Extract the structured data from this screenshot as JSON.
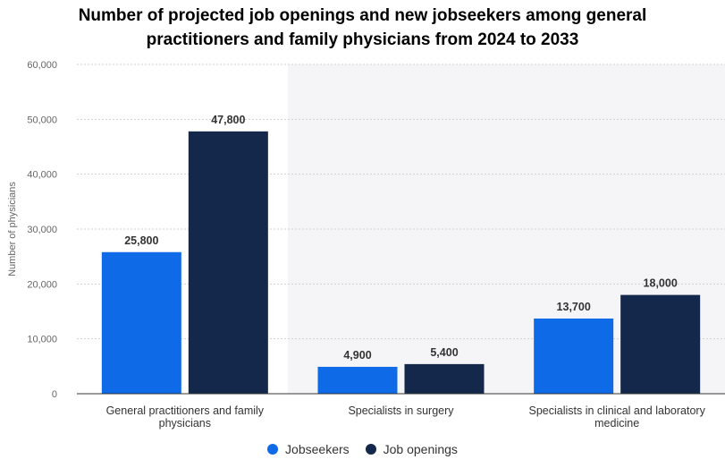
{
  "chart_data": {
    "type": "bar",
    "title_lines": [
      "Number of projected job openings and new jobseekers among general",
      "practitioners and family physicians from 2024 to 2033"
    ],
    "ylabel": "Number of physicians",
    "xlabel": "",
    "ylim": [
      0,
      60000
    ],
    "yticks": [
      0,
      10000,
      20000,
      30000,
      40000,
      50000,
      60000
    ],
    "ytick_labels": [
      "0",
      "10,000",
      "20,000",
      "30,000",
      "40,000",
      "50,000",
      "60,000"
    ],
    "grid": true,
    "legend_position": "bottom",
    "categories": [
      [
        "General practitioners and family",
        "physicians"
      ],
      [
        "Specialists in surgery"
      ],
      [
        "Specialists in clinical and laboratory",
        "medicine"
      ]
    ],
    "series": [
      {
        "name": "Jobseekers",
        "color": "#0e6ae6",
        "values": [
          25800,
          4900,
          13700
        ],
        "labels": [
          "25,800",
          "4,900",
          "13,700"
        ]
      },
      {
        "name": "Job openings",
        "color": "#13284a",
        "values": [
          47800,
          5400,
          18000
        ],
        "labels": [
          "47,800",
          "5,400",
          "18,000"
        ]
      }
    ]
  }
}
